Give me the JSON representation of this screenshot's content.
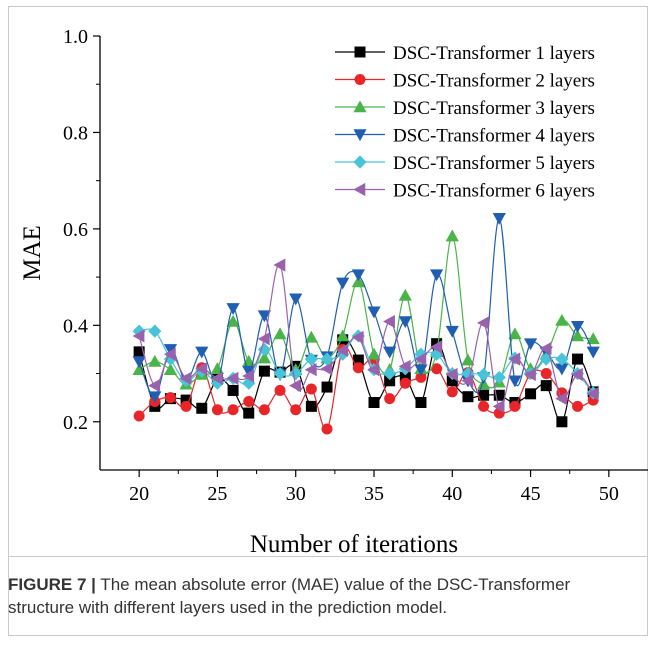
{
  "caption": {
    "label": "FIGURE 7 |",
    "text": " The mean absolute error (MAE) value of the DSC-Transformer structure with different layers used in the prediction model."
  },
  "chart_data": {
    "type": "line",
    "xlabel": "Number of iterations",
    "ylabel": "MAE",
    "xlim": [
      17.5,
      52.5
    ],
    "ylim": [
      0.1,
      1.0
    ],
    "x_ticks": [
      "20",
      "25",
      "30",
      "35",
      "40",
      "45",
      "50"
    ],
    "y_ticks": [
      "0.2",
      "0.4",
      "0.6",
      "0.8",
      "1.0"
    ],
    "legend_position": "top-right",
    "x": [
      20,
      21,
      22,
      23,
      24,
      25,
      26,
      27,
      28,
      29,
      30,
      31,
      32,
      33,
      34,
      35,
      36,
      37,
      38,
      39,
      40,
      41,
      42,
      43,
      44,
      45,
      46,
      47,
      48,
      49
    ],
    "series": [
      {
        "name": "DSC-Transformer 1 layers",
        "color": "#000000",
        "marker": "square",
        "values": [
          0.345,
          0.232,
          0.248,
          0.245,
          0.228,
          0.288,
          0.265,
          0.218,
          0.305,
          0.303,
          0.315,
          0.232,
          0.272,
          0.37,
          0.328,
          0.24,
          0.285,
          0.292,
          0.24,
          0.362,
          0.285,
          0.252,
          0.255,
          0.255,
          0.24,
          0.258,
          0.275,
          0.2,
          0.33,
          0.262
        ]
      },
      {
        "name": "DSC-Transformer 2 layers",
        "color": "#e8262a",
        "marker": "circle",
        "values": [
          0.212,
          0.242,
          0.25,
          0.232,
          0.312,
          0.225,
          0.225,
          0.242,
          0.225,
          0.265,
          0.225,
          0.268,
          0.185,
          0.35,
          0.312,
          0.328,
          0.248,
          0.28,
          0.292,
          0.31,
          0.262,
          0.302,
          0.232,
          0.218,
          0.232,
          0.3,
          0.3,
          0.26,
          0.232,
          0.245
        ]
      },
      {
        "name": "DSC-Transformer 3 layers",
        "color": "#4ab449",
        "marker": "triangle-up",
        "values": [
          0.308,
          0.325,
          0.308,
          0.278,
          0.298,
          0.31,
          0.408,
          0.325,
          0.332,
          0.382,
          0.308,
          0.375,
          0.332,
          0.378,
          0.49,
          0.34,
          0.308,
          0.462,
          0.31,
          0.345,
          0.585,
          0.328,
          0.278,
          0.282,
          0.382,
          0.31,
          0.34,
          0.41,
          0.378,
          0.372
        ]
      },
      {
        "name": "DSC-Transformer 4 layers",
        "color": "#1f5eb0",
        "marker": "triangle-down",
        "values": [
          0.325,
          0.252,
          0.35,
          0.285,
          0.345,
          0.282,
          0.435,
          0.305,
          0.42,
          0.298,
          0.455,
          0.328,
          0.335,
          0.488,
          0.505,
          0.428,
          0.345,
          0.408,
          0.308,
          0.505,
          0.388,
          0.285,
          0.292,
          0.622,
          0.285,
          0.362,
          0.345,
          0.31,
          0.398,
          0.345
        ]
      },
      {
        "name": "DSC-Transformer 5 layers",
        "color": "#47c4d8",
        "marker": "diamond",
        "values": [
          0.388,
          0.388,
          0.33,
          0.285,
          0.305,
          0.28,
          0.29,
          0.28,
          0.35,
          0.3,
          0.3,
          0.33,
          0.33,
          0.34,
          0.378,
          0.308,
          0.3,
          0.31,
          0.34,
          0.34,
          0.3,
          0.3,
          0.298,
          0.292,
          0.332,
          0.3,
          0.33,
          0.33,
          0.3,
          0.26
        ]
      },
      {
        "name": "DSC-Transformer 6 layers",
        "color": "#9a62ad",
        "marker": "triangle-left",
        "values": [
          0.378,
          0.275,
          0.34,
          0.29,
          0.31,
          0.29,
          0.29,
          0.295,
          0.372,
          0.525,
          0.275,
          0.308,
          0.31,
          0.348,
          0.375,
          0.308,
          0.408,
          0.315,
          0.33,
          0.355,
          0.298,
          0.285,
          0.405,
          0.232,
          0.33,
          0.298,
          0.352,
          0.248,
          0.298,
          0.258
        ]
      }
    ]
  }
}
